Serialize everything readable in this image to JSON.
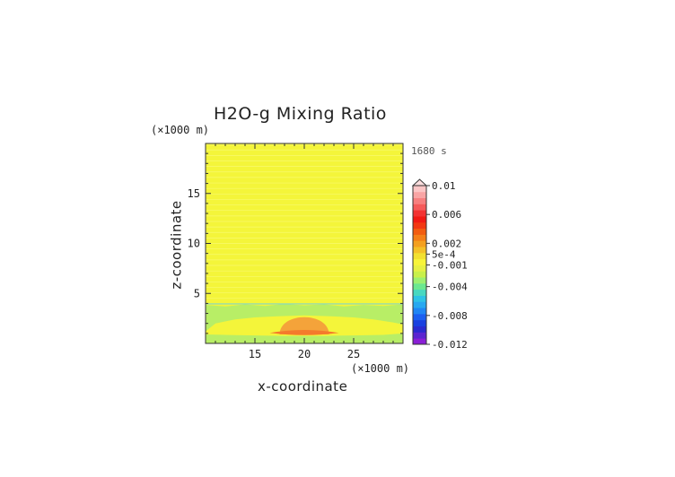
{
  "chart_data": {
    "type": "heatmap",
    "title": "H2O-g Mixing Ratio",
    "xlabel": "x-coordinate",
    "ylabel": "z-coordinate",
    "x_unit": "(×1000 m)",
    "y_unit": "(×1000 m)",
    "time_label": "1680 s",
    "xlim": [
      10,
      30
    ],
    "ylim": [
      0,
      20
    ],
    "x_ticks": [
      15,
      20,
      25
    ],
    "y_ticks": [
      5,
      10,
      15
    ],
    "colorbar": {
      "range": [
        -0.012,
        0.01
      ],
      "extend": "max",
      "tick_values": [
        0.01,
        0.006,
        0.002,
        0.0005,
        -0.001,
        -0.004,
        -0.008,
        -0.012
      ],
      "tick_labels": [
        "0.01",
        "0.006",
        "0.002",
        "5e-4",
        "-0.001",
        "-0.004",
        "-0.008",
        "-0.012"
      ],
      "colors": [
        "#8a1fd6",
        "#5b25d0",
        "#2a2ad0",
        "#1a40e0",
        "#1b5ff0",
        "#1f86f4",
        "#27a8f0",
        "#2ec3e6",
        "#48d8c0",
        "#6be890",
        "#9cf070",
        "#c8f04a",
        "#e6f044",
        "#f7f43a",
        "#f2e030",
        "#f4c028",
        "#f4a020",
        "#f47f18",
        "#f25c10",
        "#f23812",
        "#f11a14",
        "#f33333",
        "#f55a5a",
        "#f77f7f",
        "#f9a4a4",
        "#fcc6c6"
      ]
    },
    "field": {
      "background_value": 0.0003,
      "background_color": "#f4f53a",
      "regions": [
        {
          "name": "lower moist band",
          "x": [
            10,
            30
          ],
          "z": [
            0,
            3.9
          ],
          "value": -0.0008,
          "color": "#b8ee66"
        },
        {
          "name": "inner layer",
          "x": [
            10,
            30
          ],
          "z": [
            0.8,
            2.2
          ],
          "value": 0.0002,
          "color": "#f4f53a"
        },
        {
          "name": "dome",
          "center_x": 20,
          "top_z": 3.2,
          "half_width_x": 2.5,
          "value": 0.0022,
          "color": "#f4a33a"
        },
        {
          "name": "core",
          "center_x": 20,
          "z": [
            0.8,
            1.3
          ],
          "half_width_x": 3.5,
          "value": 0.0035,
          "color": "#f47a2c"
        }
      ]
    }
  }
}
